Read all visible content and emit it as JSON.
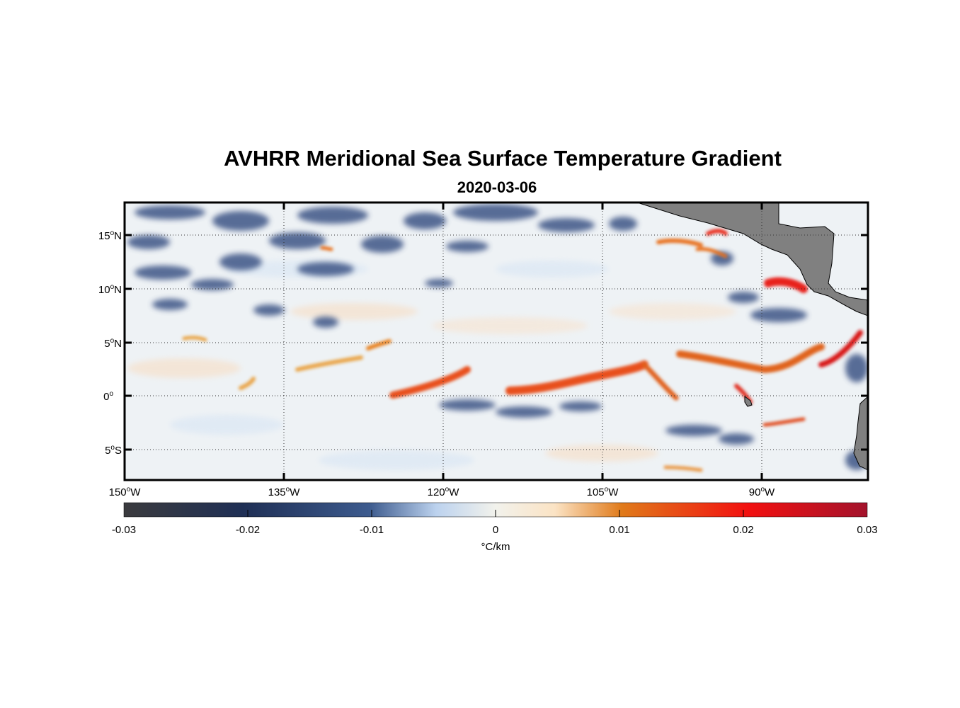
{
  "title": "AVHRR Meridional Sea Surface Temperature Gradient",
  "subtitle": "2020-03-06",
  "map": {
    "lon_range": [
      -150,
      -80
    ],
    "lat_range": [
      -8,
      18
    ],
    "grid": "dotted",
    "land_color": "#808080",
    "x_ticks": [
      {
        "lon": -150,
        "deg": "150",
        "hem": "W"
      },
      {
        "lon": -135,
        "deg": "135",
        "hem": "W"
      },
      {
        "lon": -120,
        "deg": "120",
        "hem": "W"
      },
      {
        "lon": -105,
        "deg": "105",
        "hem": "W"
      },
      {
        "lon": -90,
        "deg": "90",
        "hem": "W"
      }
    ],
    "y_ticks": [
      {
        "lat": 15,
        "deg": "15",
        "hem": "N"
      },
      {
        "lat": 10,
        "deg": "10",
        "hem": "N"
      },
      {
        "lat": 5,
        "deg": "5",
        "hem": "N"
      },
      {
        "lat": 0,
        "deg": "0",
        "hem": ""
      },
      {
        "lat": -5,
        "deg": "5",
        "hem": "S"
      }
    ]
  },
  "colorbar": {
    "range": [
      -0.03,
      0.03
    ],
    "ticks": [
      "-0.03",
      "-0.02",
      "-0.01",
      "0",
      "0.01",
      "0.02",
      "0.03"
    ],
    "unit": "°C/km",
    "colors": [
      "#3a3a3a",
      "#1f2f55",
      "#3a5a8c",
      "#cfe0f2",
      "#f3f0e6",
      "#fbe3c4",
      "#e07a1a",
      "#f01010",
      "#a0102a"
    ]
  }
}
